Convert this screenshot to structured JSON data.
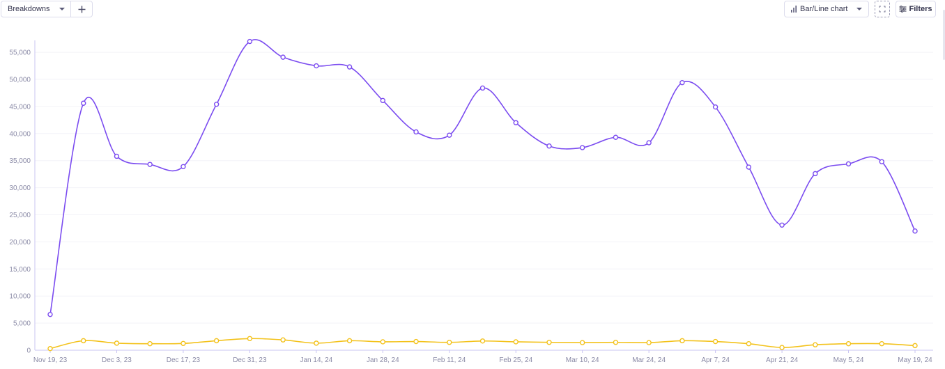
{
  "toolbar": {
    "breakdowns_label": "Breakdowns",
    "chart_type_label": "Bar/Line chart",
    "filters_label": "Filters"
  },
  "icons": {
    "breakdowns_caret": "chevron-down-icon",
    "add": "plus-icon",
    "chart_type": "bar-chart-icon",
    "chart_type_caret": "chevron-down-icon",
    "fullscreen": "expand-icon",
    "filters": "sliders-icon"
  },
  "colors": {
    "series_primary": "#7b4cf0",
    "series_secondary": "#f3c21b",
    "axis": "#c9c4f2",
    "grid": "#f3f3f8"
  },
  "chart_data": {
    "type": "line",
    "title": "",
    "xlabel": "",
    "ylabel": "",
    "x_tick_labels": [
      "Nov 19, 23",
      "Dec 3, 23",
      "Dec 17, 23",
      "Dec 31, 23",
      "Jan 14, 24",
      "Jan 28, 24",
      "Feb 11, 24",
      "Feb 25, 24",
      "Mar 10, 24",
      "Mar 24, 24",
      "Apr 7, 24",
      "Apr 21, 24",
      "May 5, 24",
      "May 19, 24"
    ],
    "x": [
      "Nov 19, 23",
      "Nov 26, 23",
      "Dec 3, 23",
      "Dec 10, 23",
      "Dec 17, 23",
      "Dec 24, 23",
      "Dec 31, 23",
      "Jan 7, 24",
      "Jan 14, 24",
      "Jan 21, 24",
      "Jan 28, 24",
      "Feb 4, 24",
      "Feb 11, 24",
      "Feb 18, 24",
      "Feb 25, 24",
      "Mar 3, 24",
      "Mar 10, 24",
      "Mar 17, 24",
      "Mar 24, 24",
      "Mar 31, 24",
      "Apr 7, 24",
      "Apr 14, 24",
      "Apr 21, 24",
      "Apr 28, 24",
      "May 5, 24",
      "May 12, 24",
      "May 19, 24"
    ],
    "y_ticks": [
      0,
      5000,
      10000,
      15000,
      20000,
      25000,
      30000,
      35000,
      40000,
      45000,
      50000,
      55000
    ],
    "y_tick_labels": [
      "0",
      "5,000",
      "10,000",
      "15,000",
      "20,000",
      "25,000",
      "30,000",
      "35,000",
      "40,000",
      "45,000",
      "50,000",
      "55,000"
    ],
    "ylim": [
      0,
      57200
    ],
    "grid": true,
    "series": [
      {
        "color": "#7b4cf0",
        "values": [
          6600,
          45600,
          35800,
          34300,
          33900,
          45400,
          57000,
          54100,
          52500,
          52300,
          46100,
          40300,
          39700,
          48400,
          42000,
          37700,
          37400,
          39300,
          38300,
          49400,
          44900,
          33800,
          23100,
          32600,
          34400,
          34800,
          22000
        ]
      },
      {
        "color": "#f3c21b",
        "values": [
          300,
          1750,
          1300,
          1200,
          1250,
          1750,
          2150,
          1900,
          1300,
          1750,
          1550,
          1600,
          1450,
          1700,
          1550,
          1450,
          1400,
          1450,
          1400,
          1750,
          1600,
          1200,
          500,
          1000,
          1200,
          1200,
          850
        ]
      }
    ]
  }
}
